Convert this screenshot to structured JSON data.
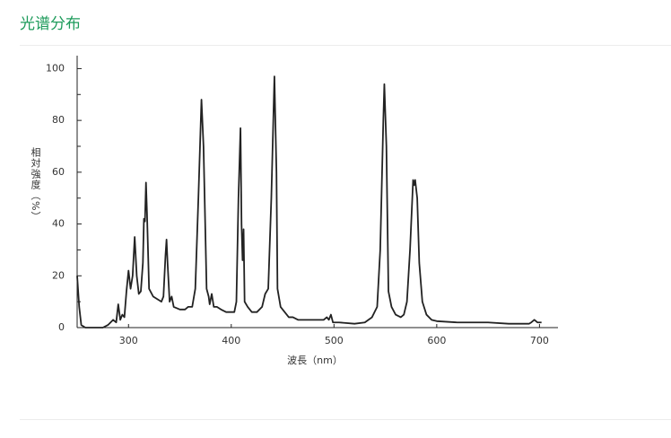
{
  "chart_data": {
    "type": "line",
    "title": "光谱分布",
    "x_label": "波長（nm）",
    "y_label": "相対強度（%）",
    "xlim": [
      250,
      718
    ],
    "ylim": [
      0,
      105
    ],
    "xticks": [
      300,
      400,
      500,
      600,
      700
    ],
    "yticks": [
      0,
      20,
      40,
      60,
      80,
      100
    ],
    "minor_yticks": [
      10,
      30,
      50,
      70,
      90
    ],
    "color": "#222222",
    "x": [
      250,
      252,
      254,
      258,
      270,
      275,
      280,
      285,
      288,
      290,
      292,
      294,
      296,
      298,
      300,
      302,
      304,
      306,
      308,
      310,
      312,
      314,
      315,
      316,
      317,
      318,
      320,
      324,
      328,
      332,
      334,
      336,
      337,
      338,
      340,
      342,
      344,
      350,
      355,
      358,
      362,
      365,
      368,
      371,
      373,
      376,
      378,
      379,
      381,
      383,
      386,
      390,
      395,
      400,
      403,
      405,
      407,
      409,
      410,
      411,
      412,
      413,
      416,
      420,
      425,
      430,
      433,
      436,
      439,
      442,
      444,
      445,
      448,
      452,
      456,
      460,
      465,
      470,
      480,
      490,
      493,
      495,
      497,
      499,
      505,
      520,
      530,
      537,
      542,
      545,
      548,
      549,
      551,
      553,
      556,
      560,
      565,
      568,
      571,
      574,
      577,
      578,
      579,
      581,
      583,
      586,
      590,
      595,
      600,
      620,
      630,
      640,
      650,
      670,
      690,
      692,
      695,
      698,
      702
    ],
    "values": [
      20,
      8,
      1,
      0,
      0,
      0,
      1,
      3,
      2,
      9,
      3,
      5,
      4,
      14,
      22,
      15,
      20,
      35,
      20,
      13,
      14,
      25,
      42,
      41,
      56,
      44,
      15,
      12,
      11,
      10,
      12,
      28,
      34,
      25,
      10,
      12,
      8,
      7,
      7,
      8,
      8,
      15,
      50,
      88,
      70,
      15,
      12,
      9,
      13,
      8,
      8,
      7,
      6,
      6,
      6,
      10,
      50,
      77,
      40,
      26,
      38,
      10,
      8,
      6,
      6,
      8,
      13,
      15,
      50,
      97,
      60,
      15,
      8,
      6,
      4,
      4,
      3,
      3,
      3,
      3,
      4,
      3,
      5,
      2,
      2,
      1.5,
      2,
      4,
      8,
      30,
      80,
      94,
      70,
      14,
      8,
      5,
      4,
      5,
      10,
      30,
      57,
      55,
      57,
      50,
      25,
      10,
      5,
      3,
      2.5,
      2,
      2,
      2,
      2,
      1.5,
      1.5,
      2,
      3,
      2,
      2
    ]
  }
}
